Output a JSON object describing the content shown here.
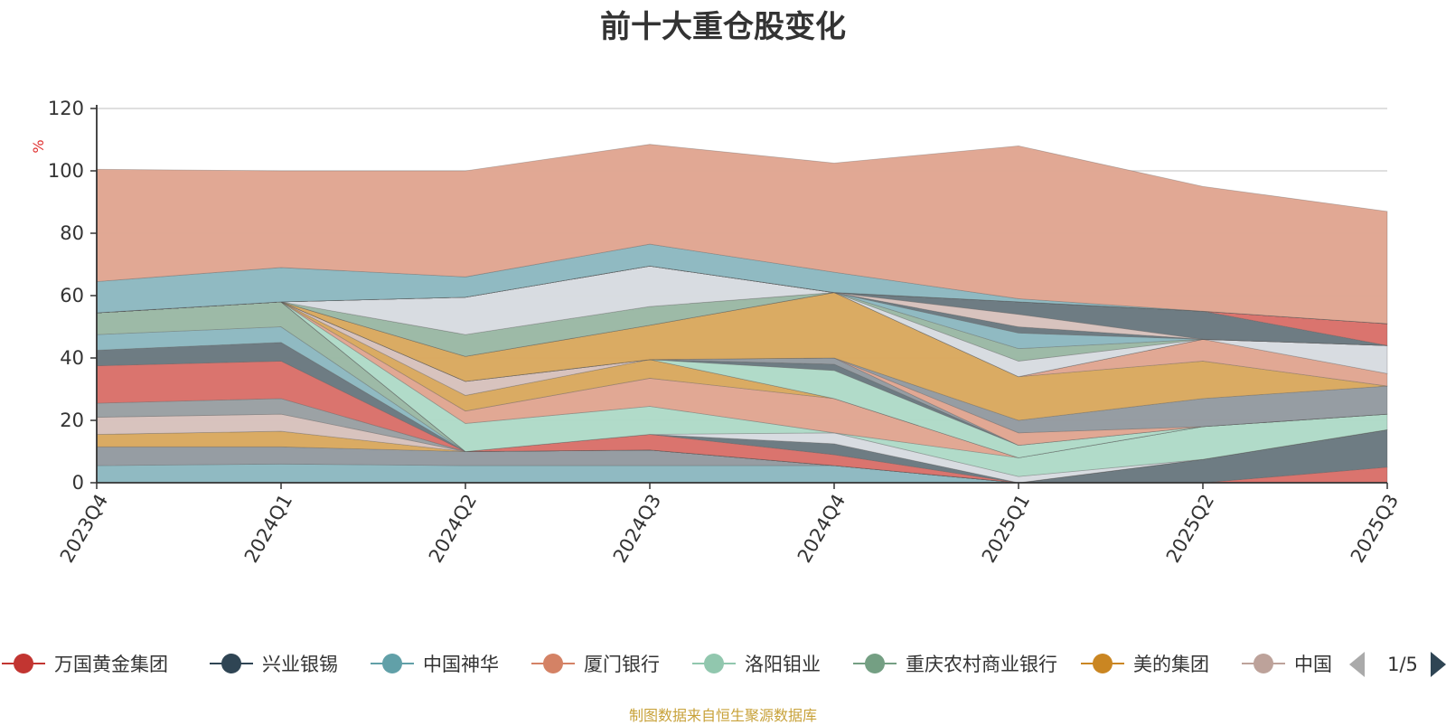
{
  "chart_data": {
    "type": "area",
    "title": "前十大重仓股变化",
    "ylabel": "%",
    "ylim": [
      0,
      120
    ],
    "yticks": [
      0,
      20,
      40,
      60,
      80,
      100,
      120
    ],
    "categories": [
      "2023Q4",
      "2024Q1",
      "2024Q2",
      "2024Q3",
      "2024Q4",
      "2025Q1",
      "2025Q2",
      "2025Q3"
    ],
    "grid": true,
    "legend": {
      "position": "bottom",
      "page": "1/5"
    },
    "series": [
      {
        "name": "中国神华",
        "color": "#8cb8c0",
        "values": [
          5.5,
          6,
          5.5,
          5.5,
          5.5,
          0,
          0,
          0
        ]
      },
      {
        "name": "",
        "color": "#939aa0",
        "values": [
          6,
          5.5,
          4.5,
          5,
          0,
          0,
          0,
          0
        ]
      },
      {
        "name": "美的集团",
        "color": "#d9a85e",
        "values": [
          4,
          5,
          0,
          0,
          0,
          0,
          0,
          0
        ]
      },
      {
        "name": "中国",
        "color": "#d7c1bc",
        "values": [
          5.5,
          5.5,
          0,
          0,
          0,
          0,
          0,
          0
        ]
      },
      {
        "name": "",
        "color": "#999fa2",
        "values": [
          4.5,
          5,
          0,
          0,
          0,
          0,
          0,
          0
        ]
      },
      {
        "name": "万国黄金集团",
        "color": "#d97069",
        "values": [
          12,
          12,
          0,
          0,
          0,
          0,
          0,
          5
        ]
      },
      {
        "name": "兴业银锡",
        "color": "#69787f",
        "values": [
          5,
          6,
          0,
          0,
          0,
          0,
          7.5,
          12
        ]
      },
      {
        "name": "中国神华",
        "color": "#8cb8c0",
        "values": [
          5,
          5,
          0,
          0,
          0,
          0,
          0,
          0
        ]
      },
      {
        "name": "重庆农村商业银行",
        "color": "#9ab8a4",
        "values": [
          7,
          8,
          0,
          0,
          0,
          0,
          0,
          0
        ]
      },
      {
        "name": "",
        "color": "#d9a85e",
        "values": [
          0,
          0,
          0,
          0,
          0,
          0,
          0,
          0
        ]
      },
      {
        "name": "",
        "color": "#d97069",
        "values": [
          0,
          0,
          0,
          5,
          3.5,
          0,
          0,
          0
        ]
      },
      {
        "name": "",
        "color": "#69787f",
        "values": [
          0,
          0,
          0,
          0,
          3.5,
          0,
          0,
          0
        ]
      },
      {
        "name": "",
        "color": "#d7dbe0",
        "values": [
          0,
          0,
          0,
          0,
          3.5,
          2,
          0,
          0
        ]
      },
      {
        "name": "洛阳钼业",
        "color": "#aedac7",
        "values": [
          0,
          0,
          9,
          9,
          0,
          6,
          10.5,
          5
        ]
      },
      {
        "name": "厦门银行",
        "color": "#e0a591",
        "values": [
          0,
          0,
          4,
          9,
          11,
          0,
          0,
          0
        ]
      },
      {
        "name": "",
        "color": "#d9a85e",
        "values": [
          0,
          0,
          5,
          6,
          0,
          0,
          0,
          0
        ]
      },
      {
        "name": "",
        "color": "#d7c1bc",
        "values": [
          0,
          0,
          4.5,
          0,
          0,
          0,
          0,
          0
        ]
      },
      {
        "name": "",
        "color": "#aedac7",
        "values": [
          0,
          0,
          0,
          0,
          9,
          4,
          0,
          0
        ]
      },
      {
        "name": "",
        "color": "#69787f",
        "values": [
          0,
          0,
          0,
          0,
          2,
          0,
          0,
          0
        ]
      },
      {
        "name": "",
        "color": "#939aa0",
        "values": [
          0,
          0,
          0,
          0,
          2,
          0,
          0,
          0
        ]
      },
      {
        "name": "",
        "color": "#e0a591",
        "values": [
          0,
          0,
          0,
          0,
          0,
          4,
          0,
          0
        ]
      },
      {
        "name": "",
        "color": "#939aa0",
        "values": [
          0,
          0,
          0,
          0,
          0,
          4,
          9,
          9
        ]
      },
      {
        "name": "",
        "color": "#d9a85e",
        "values": [
          0,
          0,
          8,
          11,
          21,
          14,
          12,
          0
        ]
      },
      {
        "name": "",
        "color": "#e0a591",
        "values": [
          0,
          0,
          0,
          0,
          0,
          0,
          7,
          4
        ]
      },
      {
        "name": "",
        "color": "#d7dbe0",
        "values": [
          0,
          0,
          0,
          0,
          0,
          0,
          0,
          9
        ]
      },
      {
        "name": "",
        "color": "#9ab8a4",
        "values": [
          0,
          0,
          7,
          6,
          0,
          0,
          0,
          0
        ]
      },
      {
        "name": "",
        "color": "#d7dbe0",
        "values": [
          0,
          0,
          12,
          13,
          0,
          5,
          0,
          0
        ]
      },
      {
        "name": "",
        "color": "#9ab8a4",
        "values": [
          0,
          0,
          0,
          0,
          0,
          4,
          0,
          0
        ]
      },
      {
        "name": "",
        "color": "#8cb8c0",
        "values": [
          0,
          0,
          0,
          0,
          0,
          5,
          0,
          0
        ]
      },
      {
        "name": "",
        "color": "#69787f",
        "values": [
          0,
          0,
          0,
          0,
          0,
          2,
          0,
          0
        ]
      },
      {
        "name": "",
        "color": "#d7c1bc",
        "values": [
          0,
          0,
          0,
          0,
          0,
          4,
          0,
          0
        ]
      },
      {
        "name": "",
        "color": "#69787f",
        "values": [
          0,
          0,
          0,
          0,
          0,
          4,
          9,
          0
        ]
      },
      {
        "name": "",
        "color": "#d97069",
        "values": [
          0,
          0,
          0,
          0,
          0,
          0,
          0,
          7
        ]
      },
      {
        "name": "",
        "color": "#9ab8a4",
        "values": [
          0,
          0,
          0,
          0,
          0,
          0,
          0,
          0
        ]
      },
      {
        "name": "",
        "color": "#d9a85e",
        "values": [
          0,
          0,
          0,
          0,
          0,
          0,
          0,
          0
        ]
      },
      {
        "name": "",
        "color": "#d7c1bc",
        "values": [
          0,
          0,
          0,
          0,
          0,
          0,
          0,
          0
        ]
      },
      {
        "name": "",
        "color": "#69787f",
        "values": [
          0,
          0,
          0,
          0,
          0,
          0,
          0,
          0
        ]
      },
      {
        "name": "",
        "color": "#d97069",
        "values": [
          0,
          0,
          0,
          0,
          0,
          0,
          0,
          0
        ]
      },
      {
        "name": "",
        "color": "#69787f",
        "values": [
          0,
          0,
          0,
          0,
          0,
          0,
          0,
          0
        ]
      },
      {
        "name": "",
        "color": "#8cb8c0",
        "values": [
          10,
          11,
          6.5,
          7,
          6.5,
          1,
          0,
          0
        ]
      },
      {
        "name": "",
        "color": "#e0a591",
        "values": [
          36,
          31,
          34,
          32,
          35,
          49,
          40,
          36
        ]
      }
    ]
  },
  "legend_items": [
    {
      "label": "万国黄金集团",
      "color": "#c23531"
    },
    {
      "label": "兴业银锡",
      "color": "#2f4554"
    },
    {
      "label": "中国神华",
      "color": "#61a0a8"
    },
    {
      "label": "厦门银行",
      "color": "#d48265"
    },
    {
      "label": "洛阳钼业",
      "color": "#91c7ae"
    },
    {
      "label": "重庆农村商业银行",
      "color": "#749f83"
    },
    {
      "label": "美的集团",
      "color": "#ca8622"
    },
    {
      "label": "中国",
      "color": "#bda29a"
    }
  ],
  "source_note": "制图数据来自恒生聚源数据库"
}
